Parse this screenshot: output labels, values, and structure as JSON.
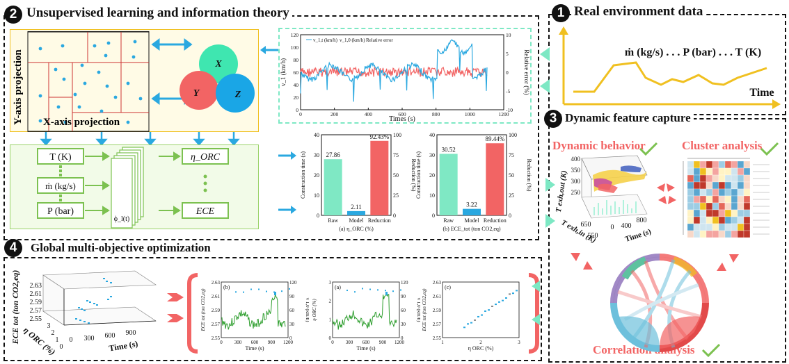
{
  "sections": {
    "s1": {
      "num": "1",
      "title": "Real environment data"
    },
    "s2": {
      "num": "2",
      "title": "Unsupervised learning and information theory"
    },
    "s3": {
      "num": "3",
      "title": "Dynamic feature capture"
    },
    "s4": {
      "num": "4",
      "title": "Global multi-objective optimization"
    }
  },
  "real_env": {
    "vars": "ṁ (kg/s) . . . P (bar) . . . T (K)",
    "time": "Time"
  },
  "projection": {
    "y_label": "Y-axis projection",
    "x_label": "X-axis projection"
  },
  "venn": {
    "x": "X",
    "y": "Y",
    "z": "Z"
  },
  "network": {
    "inputs": [
      "T (K)",
      "ṁ (kg/s)",
      "P (bar)"
    ],
    "outputs": [
      "η_ORC",
      "ECE"
    ],
    "phi_bottom": "ϕ_l(t)"
  },
  "timeseries": {
    "legend": [
      "v_1,t (km/h)",
      "v_1,0 (km/h)",
      "Relative error"
    ],
    "ylabel_left": "v_1 (km/h)",
    "ylabel_right": "Relative error (%)",
    "xlabel": "Times (s)",
    "x_ticks": [
      "0",
      "200",
      "400",
      "600",
      "800",
      "1000",
      "1200"
    ],
    "y_ticks_left": [
      "0",
      "20",
      "40",
      "60",
      "80",
      "100",
      "120"
    ],
    "y_ticks_right": [
      "-10",
      "-5",
      "0",
      "5",
      "10"
    ]
  },
  "chart_data": [
    {
      "type": "bar",
      "title": "(a) η_ORC (%)",
      "categories": [
        "Raw",
        "Model",
        "Reduction"
      ],
      "values": [
        27.86,
        2.11,
        92.43
      ],
      "labels": [
        "27.86",
        "2.11",
        "92.43%"
      ],
      "ylabel": "Construction time (s)",
      "ylabel2": "Reduction (%)",
      "ylim": [
        0,
        40
      ],
      "ylim2": [
        0,
        100
      ],
      "y_ticks": [
        "0",
        "10",
        "20",
        "30",
        "40"
      ],
      "y2_ticks": [
        "0",
        "25",
        "50",
        "75",
        "100"
      ],
      "colors": [
        "#7fe8c4",
        "#2aa8e0",
        "#f26464"
      ]
    },
    {
      "type": "bar",
      "title": "(b) ECE_tot (ton CO2,eq)",
      "categories": [
        "Raw",
        "Model",
        "Reduction"
      ],
      "values": [
        30.52,
        3.22,
        89.44
      ],
      "labels": [
        "30.52",
        "3.22",
        "89.44%"
      ],
      "ylabel": "Construction time (s)",
      "ylabel2": "Reduction (%)",
      "ylim": [
        0,
        40
      ],
      "ylim2": [
        0,
        100
      ],
      "y_ticks": [
        "0",
        "10",
        "20",
        "30",
        "40"
      ],
      "y2_ticks": [
        "0",
        "25",
        "50",
        "75",
        "100"
      ],
      "colors": [
        "#7fe8c4",
        "#2aa8e0",
        "#f26464"
      ]
    }
  ],
  "dynamic": {
    "behavior": "Dynamic behavior",
    "cluster": "Cluster analysis",
    "correlation": "Correlation analysis",
    "plot3d_z": "T exh,out (K)",
    "plot3d_x": "T exh,in (K)",
    "plot3d_y": "Time (s)",
    "z_ticks": [
      "250",
      "300",
      "350",
      "400"
    ],
    "x_ticks": [
      "550",
      "650"
    ],
    "y_ticks": [
      "0",
      "400",
      "800"
    ]
  },
  "optimization": {
    "z_label": "ECE tot (ton CO2,eq)",
    "x_label": "η ORC (%)",
    "y_label": "Time (s)",
    "z_ticks": [
      "2.55",
      "2.57",
      "2.59",
      "2.61",
      "2.63"
    ],
    "x_ticks": [
      "3",
      "2",
      "1",
      "0"
    ],
    "y_ticks": [
      "0",
      "300",
      "600",
      "900"
    ],
    "panel_b": {
      "tag": "(b)",
      "ylabel": "ECE tot (ton CO2,eq)",
      "y2label": "v 1,0 (km/h)",
      "xlabel": "Time (s)",
      "x_ticks": [
        "0",
        "300",
        "600",
        "900",
        "1200"
      ],
      "y_ticks": [
        "2.55",
        "2.57",
        "2.59",
        "2.61",
        "2.63"
      ],
      "y2_ticks": [
        "0",
        "30",
        "60",
        "90",
        "120"
      ]
    },
    "panel_a": {
      "tag": "(a)",
      "ylabel": "η ORC (%)",
      "y2label": "v 1,0 (km/h)",
      "xlabel": "Time (s)",
      "x_ticks": [
        "0",
        "300",
        "600",
        "900",
        "1200"
      ],
      "y_ticks": [
        "0",
        "1",
        "2",
        "3"
      ],
      "y2_ticks": [
        "0",
        "30",
        "60",
        "90",
        "120"
      ]
    },
    "panel_c": {
      "tag": "(c)",
      "ylabel": "ECE tot (ton CO2,eq)",
      "xlabel": "η ORC (%)",
      "x_ticks": [
        "1",
        "2",
        "3"
      ],
      "y_ticks": [
        "2.55",
        "2.57",
        "2.59",
        "2.61",
        "2.63"
      ]
    }
  },
  "colors": {
    "cyan": "#2aa8e0",
    "teal_arrow": "#7de8c4",
    "red": "#f26464",
    "green": "#2e9e2e",
    "mint_arrow": "#4fd6a8",
    "yellow": "#f0c020"
  }
}
